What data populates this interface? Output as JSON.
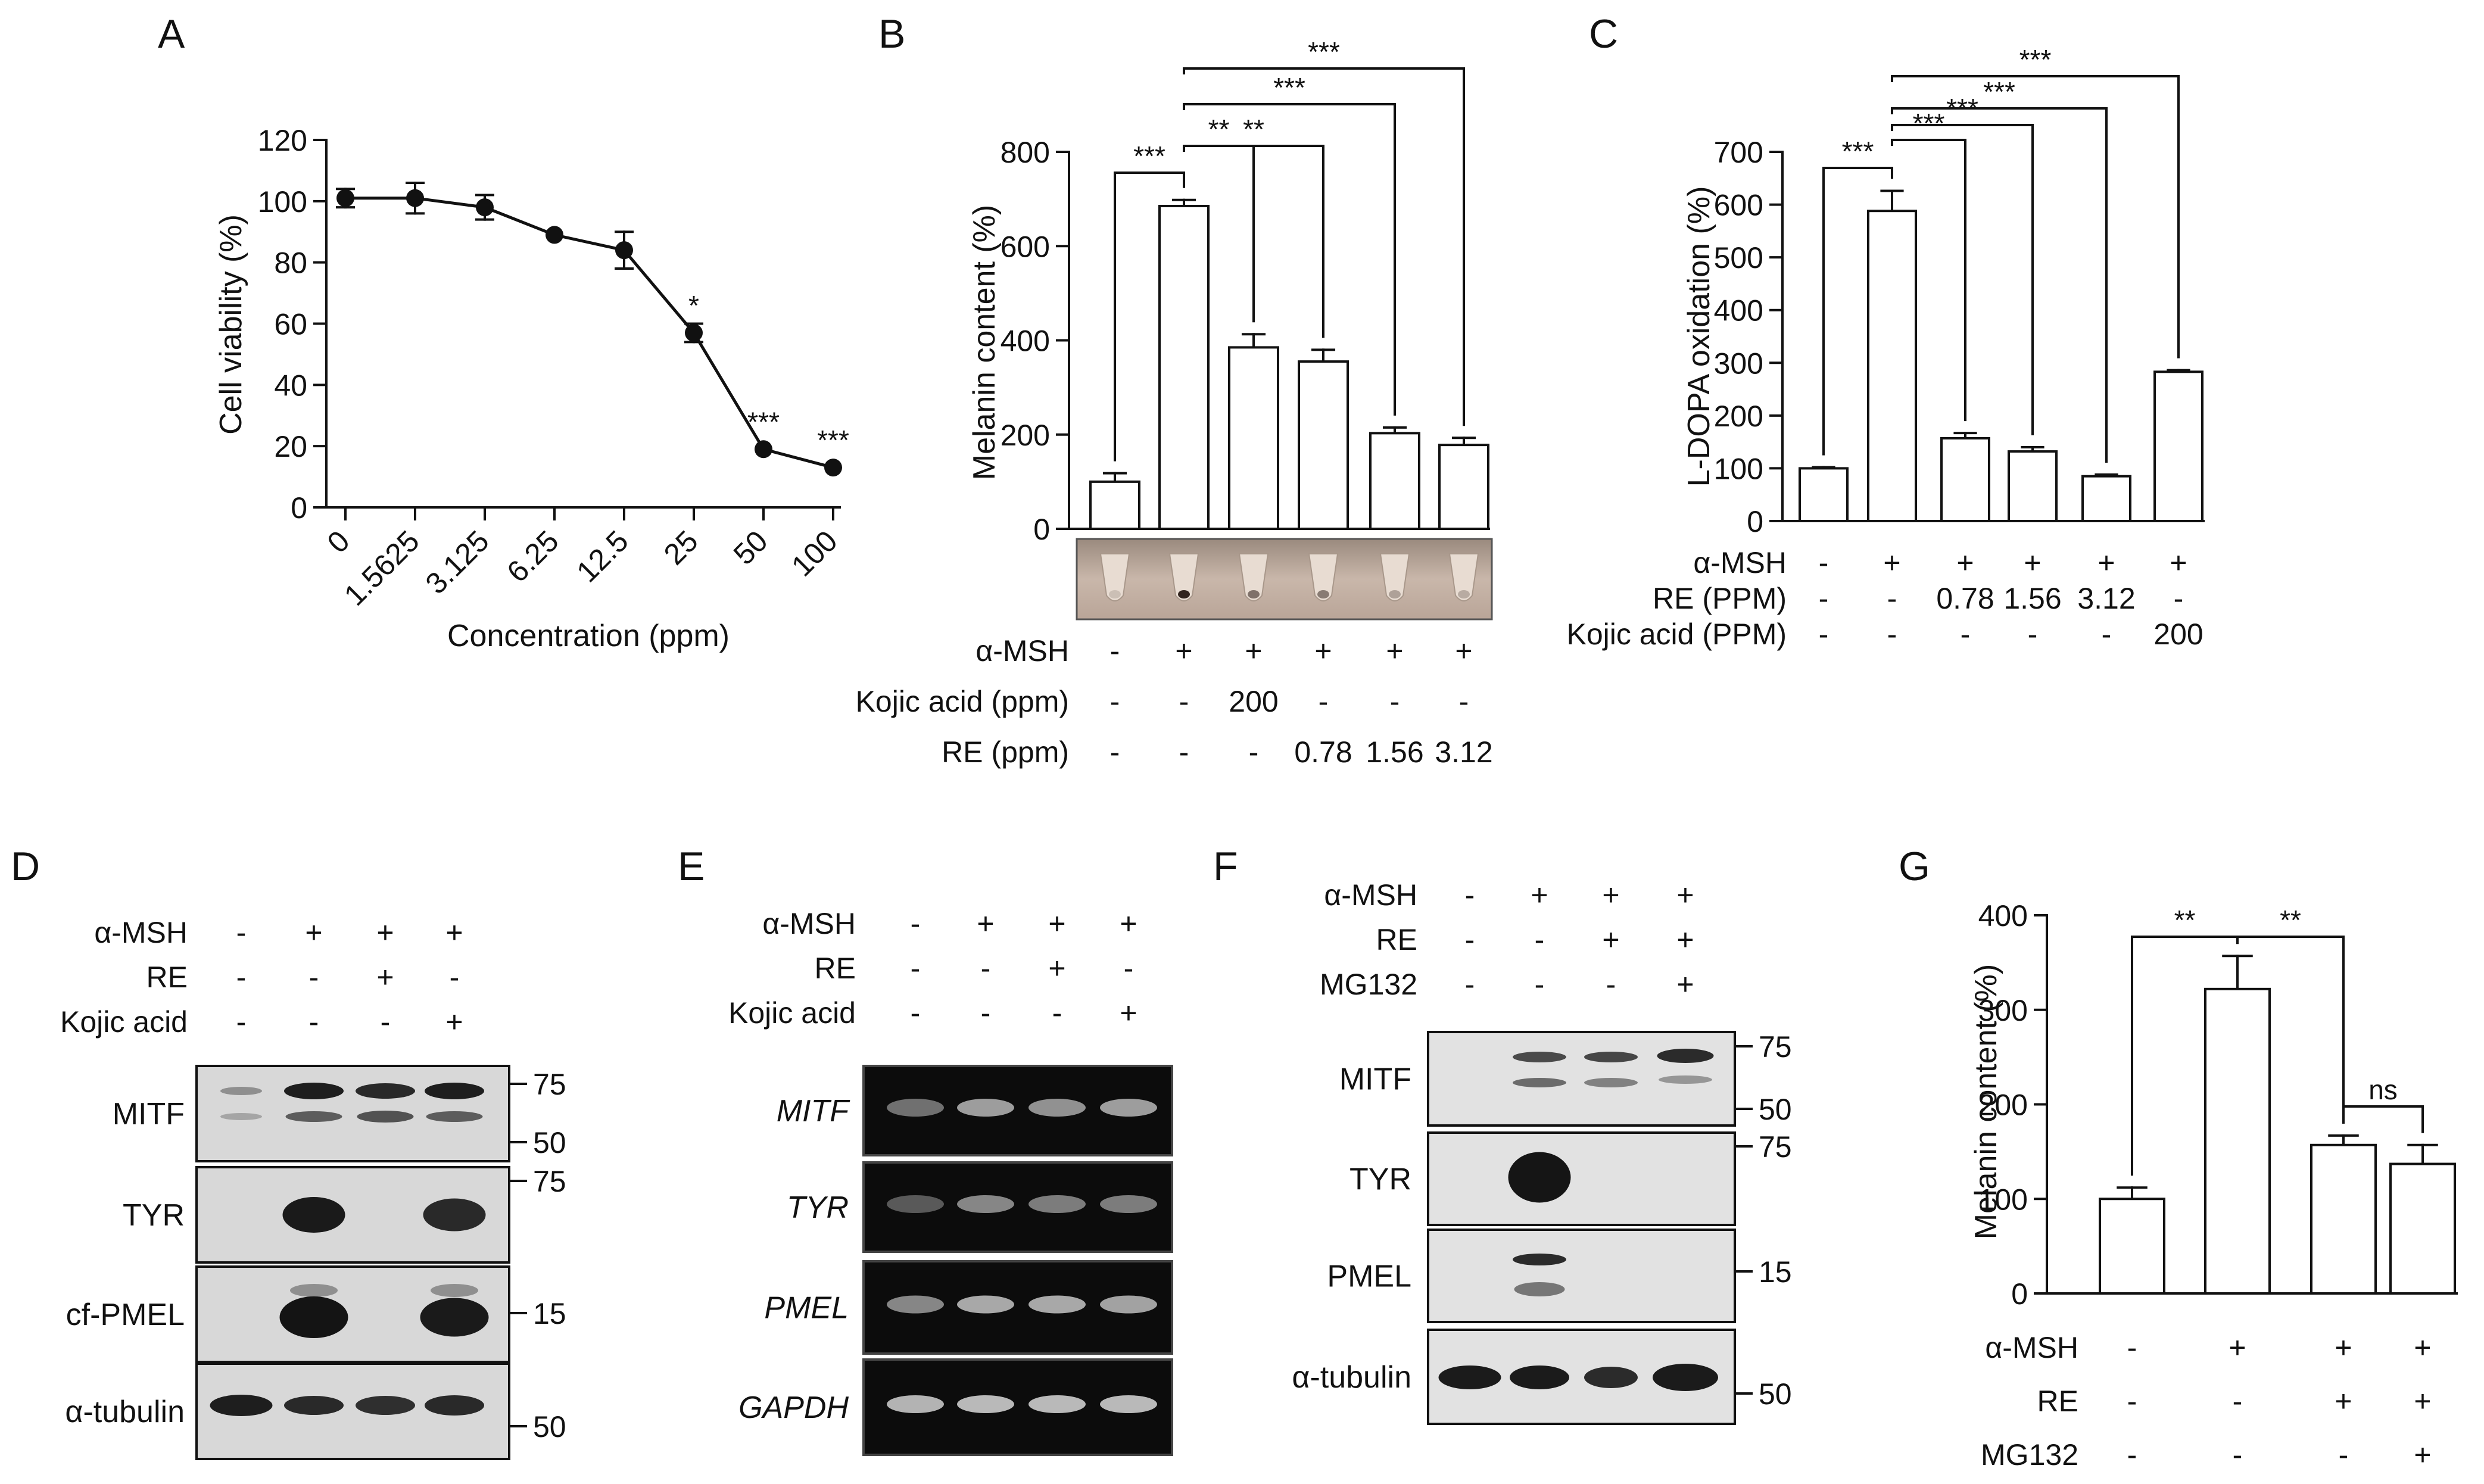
{
  "panels": {
    "A": {
      "letter": "A"
    },
    "B": {
      "letter": "B"
    },
    "C": {
      "letter": "C"
    },
    "D": {
      "letter": "D"
    },
    "E": {
      "letter": "E"
    },
    "F": {
      "letter": "F"
    },
    "G": {
      "letter": "G"
    }
  },
  "chart_data": [
    {
      "id": "A",
      "type": "line",
      "xlabel": "Concentration (ppm)",
      "ylabel": "Cell viability (%)",
      "categories": [
        "0",
        "1.5625",
        "3.125",
        "6.25",
        "12.5",
        "25",
        "50",
        "100"
      ],
      "values": [
        101,
        101,
        98,
        89,
        84,
        57,
        19,
        13
      ],
      "errors": [
        3,
        5,
        4,
        1,
        6,
        3,
        1,
        1
      ],
      "significance": [
        "",
        "",
        "",
        "",
        "",
        "*",
        "***",
        "***"
      ],
      "ylim": [
        0,
        120
      ],
      "yticks": [
        0,
        20,
        40,
        60,
        80,
        100,
        120
      ]
    },
    {
      "id": "B",
      "type": "bar",
      "ylabel": "Melanin content (%)",
      "values": [
        100,
        685,
        385,
        355,
        203,
        178
      ],
      "errors": [
        18,
        13,
        28,
        25,
        12,
        15
      ],
      "ylim": [
        0,
        800
      ],
      "yticks": [
        0,
        200,
        400,
        600,
        800
      ],
      "brackets": [
        {
          "from": 0,
          "to": 1,
          "label": "***"
        },
        {
          "from": 1,
          "to": 2,
          "label": "**"
        },
        {
          "from": 1,
          "to": 3,
          "label": "**"
        },
        {
          "from": 1,
          "to": 4,
          "label": "***"
        },
        {
          "from": 1,
          "to": 5,
          "label": "***"
        }
      ],
      "conditions": [
        {
          "label": "α-MSH",
          "values": [
            "-",
            "+",
            "+",
            "+",
            "+",
            "+"
          ]
        },
        {
          "label": "Kojic acid (ppm)",
          "values": [
            "-",
            "-",
            "200",
            "-",
            "-",
            "-"
          ]
        },
        {
          "label": "RE (ppm)",
          "values": [
            "-",
            "-",
            "-",
            "0.78",
            "1.56",
            "3.12"
          ]
        }
      ]
    },
    {
      "id": "C",
      "type": "bar",
      "ylabel": "L-DOPA oxidation (%)",
      "values": [
        100,
        588,
        157,
        132,
        85,
        283
      ],
      "errors": [
        2,
        38,
        10,
        8,
        3,
        3
      ],
      "ylim": [
        0,
        700
      ],
      "yticks": [
        0,
        100,
        200,
        300,
        400,
        500,
        600,
        700
      ],
      "brackets": [
        {
          "from": 0,
          "to": 1,
          "label": "***"
        },
        {
          "from": 1,
          "to": 2,
          "label": "***"
        },
        {
          "from": 1,
          "to": 3,
          "label": "***"
        },
        {
          "from": 1,
          "to": 4,
          "label": "***"
        },
        {
          "from": 1,
          "to": 5,
          "label": "***"
        }
      ],
      "conditions": [
        {
          "label": "α-MSH",
          "values": [
            "-",
            "+",
            "+",
            "+",
            "+",
            "+"
          ]
        },
        {
          "label": "RE (PPM)",
          "values": [
            "-",
            "-",
            "0.78",
            "1.56",
            "3.12",
            "-"
          ]
        },
        {
          "label": "Kojic acid (PPM)",
          "values": [
            "-",
            "-",
            "-",
            "-",
            "-",
            "200"
          ]
        }
      ]
    },
    {
      "id": "G",
      "type": "bar",
      "ylabel": "Melanin content (%)",
      "values": [
        100,
        322,
        157,
        137
      ],
      "errors": [
        12,
        35,
        10,
        20
      ],
      "ylim": [
        0,
        400
      ],
      "yticks": [
        0,
        100,
        200,
        300,
        400
      ],
      "brackets": [
        {
          "from": 0,
          "to": 1,
          "label": "**"
        },
        {
          "from": 1,
          "to": 2,
          "label": "**"
        },
        {
          "from": 2,
          "to": 3,
          "label": "ns"
        }
      ],
      "conditions": [
        {
          "label": "α-MSH",
          "values": [
            "-",
            "+",
            "+",
            "+"
          ]
        },
        {
          "label": "RE",
          "values": [
            "-",
            "-",
            "+",
            "+"
          ]
        },
        {
          "label": "MG132",
          "values": [
            "-",
            "-",
            "-",
            "+"
          ]
        }
      ]
    }
  ],
  "blots": {
    "D": {
      "conditions": [
        {
          "label": "α-MSH",
          "values": [
            "-",
            "+",
            "+",
            "+"
          ]
        },
        {
          "label": "RE",
          "values": [
            "-",
            "-",
            "+",
            "-"
          ]
        },
        {
          "label": "Kojic acid",
          "values": [
            "-",
            "-",
            "-",
            "+"
          ]
        }
      ],
      "rows": [
        {
          "label": "MITF",
          "markers": [
            "75",
            "50"
          ]
        },
        {
          "label": "TYR",
          "markers": [
            "75"
          ]
        },
        {
          "label": "cf-PMEL",
          "markers": [
            "15"
          ]
        },
        {
          "label": "α-tubulin",
          "markers": [
            "50"
          ]
        }
      ]
    },
    "E": {
      "conditions": [
        {
          "label": "α-MSH",
          "values": [
            "-",
            "+",
            "+",
            "+"
          ]
        },
        {
          "label": "RE",
          "values": [
            "-",
            "-",
            "+",
            "-"
          ]
        },
        {
          "label": "Kojic acid",
          "values": [
            "-",
            "-",
            "-",
            "+"
          ]
        }
      ],
      "rows": [
        {
          "label": "MITF"
        },
        {
          "label": "TYR"
        },
        {
          "label": "PMEL"
        },
        {
          "label": "GAPDH"
        }
      ]
    },
    "F": {
      "conditions": [
        {
          "label": "α-MSH",
          "values": [
            "-",
            "+",
            "+",
            "+"
          ]
        },
        {
          "label": "RE",
          "values": [
            "-",
            "-",
            "+",
            "+"
          ]
        },
        {
          "label": "MG132",
          "values": [
            "-",
            "-",
            "-",
            "+"
          ]
        }
      ],
      "rows": [
        {
          "label": "MITF",
          "markers": [
            "75",
            "50"
          ]
        },
        {
          "label": "TYR",
          "markers": [
            "75"
          ]
        },
        {
          "label": "PMEL",
          "markers": [
            "15"
          ]
        },
        {
          "label": "α-tubulin",
          "markers": [
            "50"
          ]
        }
      ]
    }
  }
}
